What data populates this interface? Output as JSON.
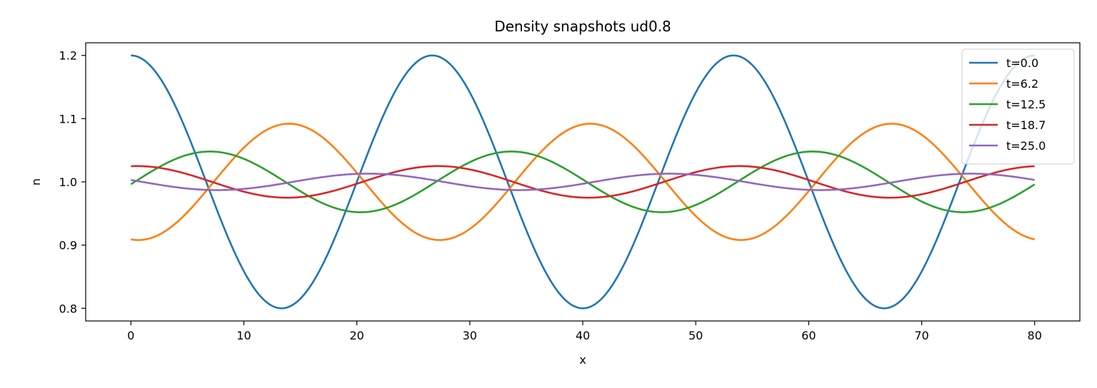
{
  "chart_data": {
    "type": "line",
    "title": "Density snapshots  ud0.8",
    "xlabel": "x",
    "ylabel": "n",
    "xlim": [
      -4,
      84
    ],
    "ylim": [
      0.78,
      1.22
    ],
    "xticks": [
      0,
      10,
      20,
      30,
      40,
      50,
      60,
      70,
      80
    ],
    "yticks": [
      0.8,
      0.9,
      1.0,
      1.1,
      1.2
    ],
    "grid": false,
    "legend_position": "top-right",
    "domain_length": 80,
    "wave_period": 26.67,
    "series": [
      {
        "name": "t=0.0",
        "color": "#1f77b4",
        "amplitude": 0.2,
        "peak_x": 0.0
      },
      {
        "name": "t=6.2",
        "color": "#ff7f0e",
        "amplitude": 0.092,
        "peak_x": 14.0
      },
      {
        "name": "t=12.5",
        "color": "#2ca02c",
        "amplitude": 0.048,
        "peak_x": 7.0
      },
      {
        "name": "t=18.7",
        "color": "#d62728",
        "amplitude": 0.025,
        "peak_x": 0.5
      },
      {
        "name": "t=25.0",
        "color": "#9467bd",
        "amplitude": 0.013,
        "peak_x": 21.0
      }
    ]
  }
}
